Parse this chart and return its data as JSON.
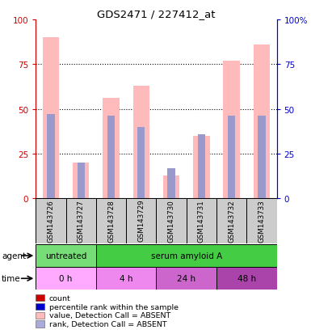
{
  "title": "GDS2471 / 227412_at",
  "samples": [
    "GSM143726",
    "GSM143727",
    "GSM143728",
    "GSM143729",
    "GSM143730",
    "GSM143731",
    "GSM143732",
    "GSM143733"
  ],
  "pink_bar_heights": [
    90,
    20,
    56,
    63,
    13,
    35,
    77,
    86
  ],
  "blue_bar_heights": [
    47,
    20,
    46,
    40,
    17,
    36,
    46,
    46
  ],
  "ylim": [
    0,
    100
  ],
  "yticks": [
    0,
    25,
    50,
    75,
    100
  ],
  "agent_colors": [
    "#77dd77",
    "#44cc44"
  ],
  "agent_labels": [
    {
      "text": "untreated",
      "start": 0,
      "end": 2
    },
    {
      "text": "serum amyloid A",
      "start": 2,
      "end": 8
    }
  ],
  "time_colors": [
    "#ffaaff",
    "#ee88ee",
    "#cc66cc",
    "#aa44aa"
  ],
  "time_labels": [
    {
      "text": "0 h",
      "start": 0,
      "end": 2
    },
    {
      "text": "4 h",
      "start": 2,
      "end": 4
    },
    {
      "text": "24 h",
      "start": 4,
      "end": 6
    },
    {
      "text": "48 h",
      "start": 6,
      "end": 8
    }
  ],
  "pink_bar_color": "#ffbbbb",
  "blue_bar_color": "#9999cc",
  "legend_items": [
    {
      "color": "#cc0000",
      "label": "count"
    },
    {
      "color": "#0000cc",
      "label": "percentile rank within the sample"
    },
    {
      "color": "#ffbbbb",
      "label": "value, Detection Call = ABSENT"
    },
    {
      "color": "#aaaadd",
      "label": "rank, Detection Call = ABSENT"
    }
  ],
  "left_axis_color": "#cc0000",
  "right_axis_color": "#0000cc",
  "bar_width": 0.55,
  "blue_bar_width": 0.25
}
